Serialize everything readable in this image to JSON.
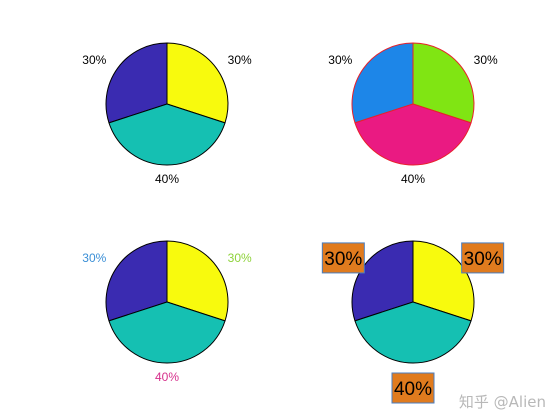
{
  "chart_data": [
    {
      "type": "pie",
      "values": [
        30,
        30,
        40
      ],
      "labels": [
        "30%",
        "30%",
        "40%"
      ],
      "colors": [
        "#f8fa0d",
        "#3a2bb1",
        "#15c0b2"
      ],
      "edge_color": "#000000",
      "label_colors": [
        "#000000",
        "#000000",
        "#000000"
      ],
      "label_style": "plain"
    },
    {
      "type": "pie",
      "values": [
        30,
        30,
        40
      ],
      "labels": [
        "30%",
        "30%",
        "40%"
      ],
      "colors": [
        "#80e513",
        "#1d86e8",
        "#ea1a82"
      ],
      "edge_color": "#e8202a",
      "label_colors": [
        "#000000",
        "#000000",
        "#000000"
      ],
      "label_style": "plain"
    },
    {
      "type": "pie",
      "values": [
        30,
        30,
        40
      ],
      "labels": [
        "30%",
        "30%",
        "40%"
      ],
      "colors": [
        "#f8fa0d",
        "#3a2bb1",
        "#15c0b2"
      ],
      "edge_color": "#000000",
      "label_colors": [
        "#8ed23a",
        "#3b8fd6",
        "#d6308c"
      ],
      "label_style": "plain"
    },
    {
      "type": "pie",
      "values": [
        30,
        30,
        40
      ],
      "labels": [
        "30%",
        "30%",
        "40%"
      ],
      "colors": [
        "#f8fa0d",
        "#3a2bb1",
        "#15c0b2"
      ],
      "edge_color": "#000000",
      "label_colors": [
        "#000000",
        "#000000",
        "#000000"
      ],
      "label_style": "boxed",
      "label_box_color": "#e07b1e",
      "label_box_edge": "#4a7ec0"
    }
  ],
  "watermark": "知乎 @Alien"
}
